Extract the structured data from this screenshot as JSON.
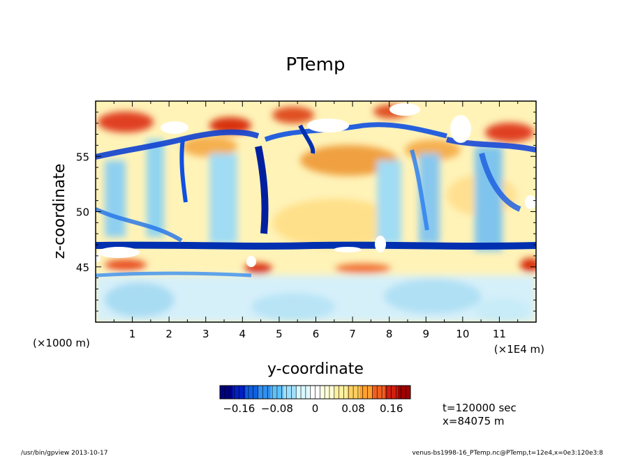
{
  "chart_data": {
    "type": "heatmap",
    "title": "PTemp",
    "xlabel": "y-coordinate",
    "ylabel": "z-coordinate",
    "x_unit_left": "(×1000 m)",
    "x_unit_right": "(×1E4 m)",
    "xlim": [
      0,
      12
    ],
    "ylim": [
      40,
      60
    ],
    "x_ticks": [
      "1",
      "2",
      "3",
      "4",
      "5",
      "6",
      "7",
      "8",
      "9",
      "10",
      "11"
    ],
    "y_ticks": [
      "45",
      "50",
      "55"
    ],
    "colorbar": {
      "ticks": [
        "−0.16",
        "−0.08",
        "0",
        "0.08",
        "0.16"
      ],
      "tick_values": [
        -0.16,
        -0.08,
        0,
        0.08,
        0.16
      ],
      "range": [
        -0.2,
        0.2
      ],
      "colors": [
        "#00007f",
        "#0020c0",
        "#1060e0",
        "#3090f0",
        "#60c0f8",
        "#a0e0ff",
        "#d8f8ff",
        "#ffffff",
        "#ffffd8",
        "#fff0a0",
        "#ffd060",
        "#ffa030",
        "#f06020",
        "#d02010",
        "#a00000"
      ]
    },
    "info": {
      "time": "t=120000 sec",
      "position": "x=84075 m"
    },
    "footer": {
      "left": "/usr/bin/gpview   2013-10-17",
      "right": "venus-bs1998-16_PTemp.nc@PTemp,t=12e4,x=0e3:120e3:8"
    }
  }
}
